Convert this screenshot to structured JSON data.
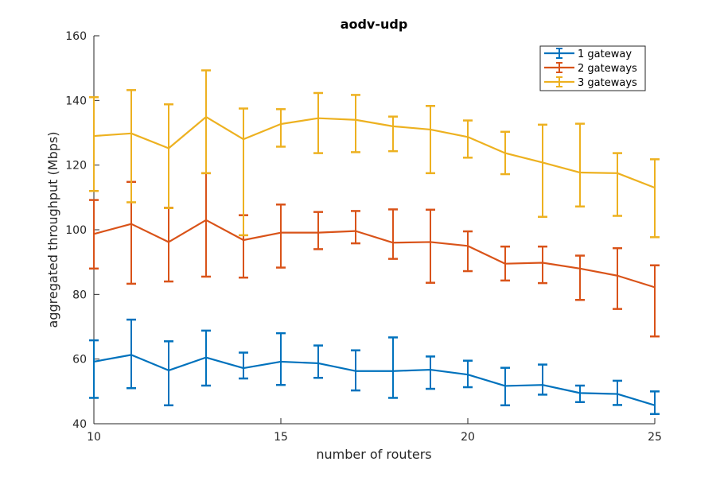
{
  "chart_data": {
    "type": "line",
    "title": "aodv-udp",
    "xlabel": "number of routers",
    "ylabel": "aggregated throughput (Mbps)",
    "xlim": [
      10,
      25
    ],
    "ylim": [
      40,
      160
    ],
    "xticks": [
      10,
      15,
      20,
      25
    ],
    "yticks": [
      40,
      60,
      80,
      100,
      120,
      140,
      160
    ],
    "grid": false,
    "legend_position": "top-right",
    "x": [
      10,
      11,
      12,
      13,
      14,
      15,
      16,
      17,
      18,
      19,
      20,
      21,
      22,
      23,
      24,
      25
    ],
    "series": [
      {
        "name": "1 gateway",
        "color": "#0072BD",
        "values": [
          59.2,
          61.3,
          56.5,
          60.5,
          57.2,
          59.2,
          58.7,
          56.3,
          56.3,
          56.7,
          55.2,
          51.7,
          52.0,
          49.5,
          49.2,
          45.7
        ],
        "err_low": [
          48.0,
          51.0,
          45.7,
          51.8,
          54.0,
          52.0,
          54.2,
          50.3,
          48.0,
          50.8,
          51.3,
          45.7,
          49.0,
          46.7,
          45.8,
          43.0
        ],
        "err_high": [
          65.8,
          72.2,
          65.5,
          68.8,
          62.0,
          68.0,
          64.2,
          62.7,
          66.7,
          60.8,
          59.5,
          57.3,
          58.3,
          51.8,
          53.3,
          50.0
        ]
      },
      {
        "name": "2 gateways",
        "color": "#D95319",
        "values": [
          98.7,
          101.8,
          96.2,
          103.0,
          96.8,
          99.1,
          99.1,
          99.6,
          96.0,
          96.2,
          95.0,
          89.5,
          89.8,
          88.0,
          85.8,
          82.2
        ],
        "err_low": [
          88.0,
          83.3,
          84.0,
          85.5,
          85.2,
          88.3,
          94.0,
          95.8,
          91.0,
          83.6,
          87.2,
          84.3,
          83.5,
          78.3,
          75.5,
          67.0
        ],
        "err_high": [
          109.2,
          114.8,
          106.8,
          117.5,
          104.5,
          107.8,
          105.5,
          105.8,
          106.3,
          106.2,
          99.5,
          94.8,
          94.8,
          92.0,
          94.3,
          89.0
        ]
      },
      {
        "name": "3 gateways",
        "color": "#EDB120",
        "values": [
          129.0,
          129.8,
          125.2,
          134.9,
          128.0,
          132.7,
          134.5,
          134.0,
          132.0,
          131.0,
          128.7,
          123.7,
          120.8,
          117.7,
          117.5,
          113.0
        ],
        "err_low": [
          112.0,
          108.5,
          106.7,
          117.5,
          98.3,
          125.7,
          123.7,
          124.0,
          124.3,
          117.5,
          122.3,
          117.2,
          104.0,
          107.2,
          104.3,
          97.7
        ],
        "err_high": [
          141.0,
          143.2,
          138.8,
          149.3,
          137.5,
          137.3,
          142.3,
          141.7,
          135.0,
          138.3,
          133.8,
          130.3,
          132.5,
          132.8,
          123.7,
          121.8
        ]
      }
    ]
  }
}
